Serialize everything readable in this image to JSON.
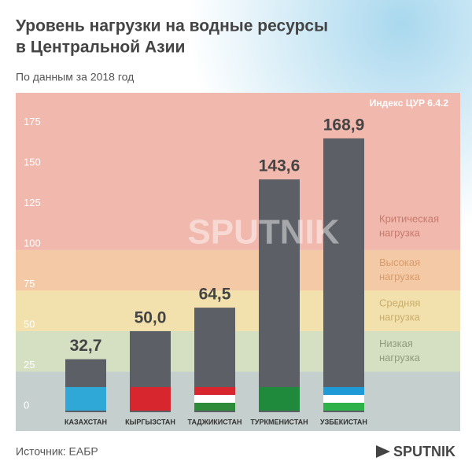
{
  "chart_data": {
    "type": "bar",
    "title": [
      "Уровень нагрузки на водные ресурсы",
      "в Центральной Азии"
    ],
    "subtitle": "По данным за 2018 год",
    "index_label": "Индекс ЦУР 6.4.2",
    "categories": [
      "КАЗАХСТАН",
      "КЫРГЫЗСТАН",
      "ТАДЖИКИСТАН",
      "ТУРКМЕНИСТАН",
      "УЗБЕКИСТАН"
    ],
    "values": [
      32.7,
      50.0,
      64.5,
      143.6,
      168.9
    ],
    "value_labels": [
      "32,7",
      "50,0",
      "64,5",
      "143,6",
      "168,9"
    ],
    "color": "#5c6066",
    "ylim": [
      0,
      197
    ],
    "yticks": [
      0,
      25,
      50,
      75,
      100,
      125,
      150,
      175
    ],
    "grid": false,
    "zones": [
      {
        "from": 0,
        "to": 25,
        "color": "#c5cfce"
      },
      {
        "from": 25,
        "to": 50,
        "color": "#d5dfc2",
        "label_color": "#8f9b7d",
        "label": [
          "Низкая",
          "нагрузка"
        ]
      },
      {
        "from": 50,
        "to": 75,
        "color": "#f2e1ad",
        "label_color": "#c9ad6a",
        "label": [
          "Средняя",
          "нагрузка"
        ]
      },
      {
        "from": 75,
        "to": 100,
        "color": "#f4caa6",
        "label_color": "#d79a6c",
        "label": [
          "Высокая",
          "нагрузка"
        ]
      },
      {
        "from": 100,
        "to": 197,
        "color": "#f1b8ad",
        "label_color": "#c77a6c",
        "label": [
          "Критическая",
          "нагрузка"
        ]
      }
    ],
    "watermark": "SPUTNIK",
    "source": "Источник: ЕАБР",
    "logo": "SPUTNIK"
  }
}
